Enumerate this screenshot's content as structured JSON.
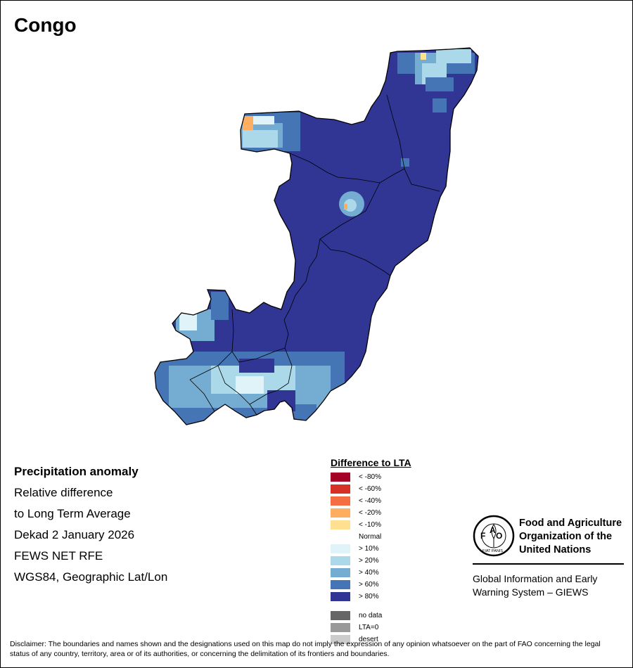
{
  "title": "Congo",
  "info": {
    "heading": "Precipitation anomaly",
    "lines": [
      "Relative difference",
      "to Long Term Average",
      "Dekad 2 January 2026",
      "FEWS NET RFE",
      "WGS84, Geographic Lat/Lon"
    ]
  },
  "legend": {
    "title": "Difference to LTA",
    "classes": [
      {
        "label": "< -80%",
        "color": "#a50026"
      },
      {
        "label": "< -60%",
        "color": "#d73027"
      },
      {
        "label": "< -40%",
        "color": "#f46d43"
      },
      {
        "label": "< -20%",
        "color": "#fdae61"
      },
      {
        "label": "< -10%",
        "color": "#fee090"
      },
      {
        "label": "Normal",
        "color": "#ffffff"
      },
      {
        "label": "> 10%",
        "color": "#e0f3f8"
      },
      {
        "label": "> 20%",
        "color": "#abd9e9"
      },
      {
        "label": "> 40%",
        "color": "#74add1"
      },
      {
        "label": "> 60%",
        "color": "#4575b4"
      },
      {
        "label": "> 80%",
        "color": "#313695"
      }
    ],
    "extra": [
      {
        "label": "no data",
        "color": "#666666"
      },
      {
        "label": "LTA=0",
        "color": "#999999"
      },
      {
        "label": "desert",
        "color": "#cccccc"
      }
    ]
  },
  "org": {
    "name_lines": [
      "Food and Agriculture",
      "Organization of the",
      "United Nations"
    ],
    "logo_text": "FAO",
    "logo_motto": "FIAT PANIS",
    "system_lines": [
      "Global Information and Early",
      "Warning System – GIEWS"
    ]
  },
  "disclaimer": "Disclaimer: The boundaries and names shown and the designations used on this map do not imply the expression of any opinion whatsoever on the part of FAO concerning the legal status of any country, territory, area or of its authorities, or concerning the delimitation of its frontiers and boundaries."
}
